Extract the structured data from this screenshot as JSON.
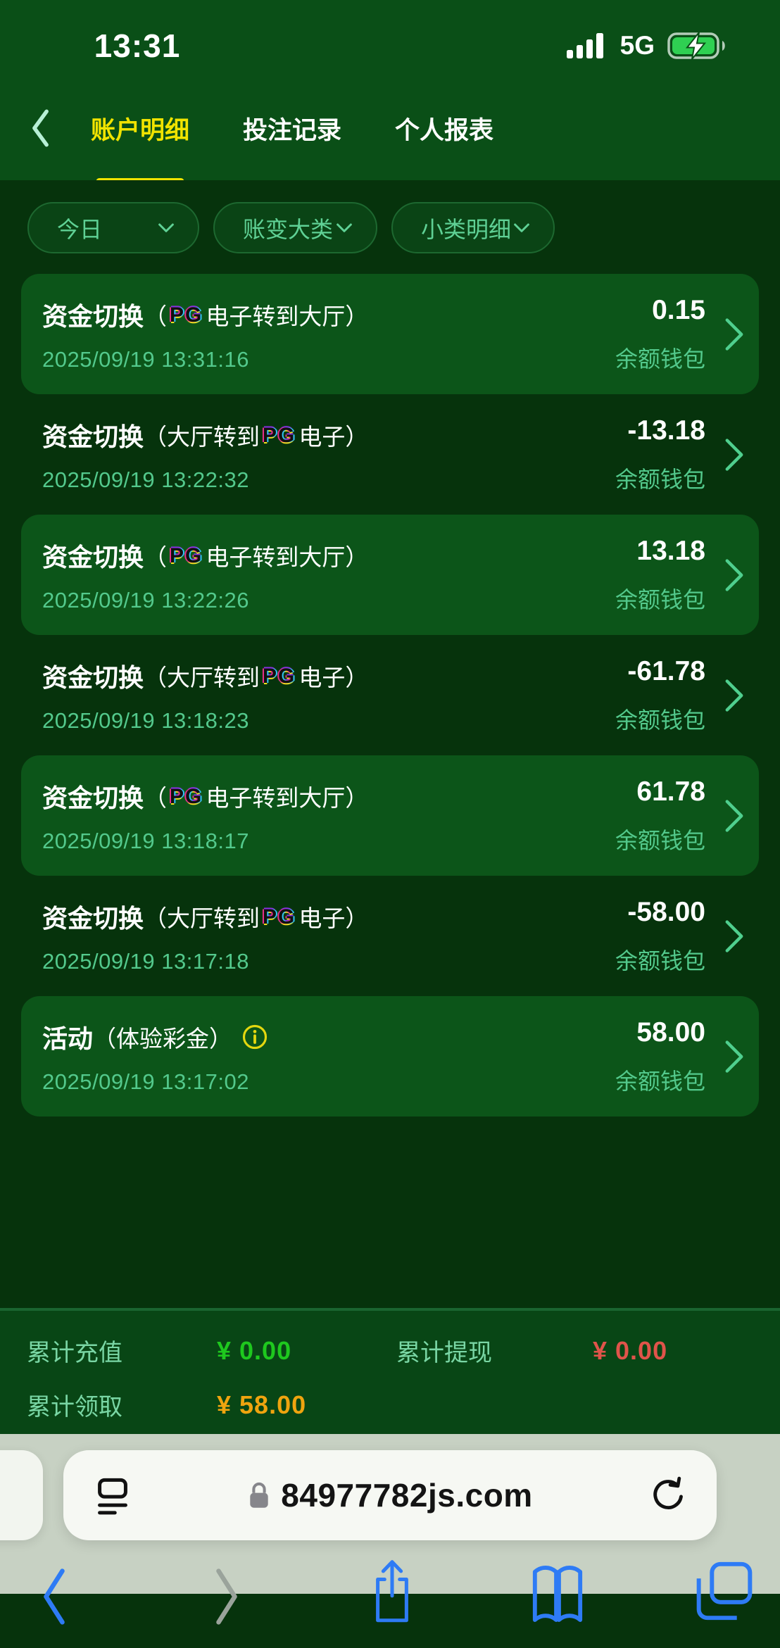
{
  "status_bar": {
    "time": "13:31",
    "network_label": "5G"
  },
  "nav": {
    "tabs": [
      {
        "id": "account-detail",
        "label": "账户明细",
        "active": true
      },
      {
        "id": "bet-records",
        "label": "投注记录",
        "active": false
      },
      {
        "id": "personal-report",
        "label": "个人报表",
        "active": false
      }
    ]
  },
  "filters": [
    {
      "id": "date-range",
      "label": "今日"
    },
    {
      "id": "change-category",
      "label": "账变大类"
    },
    {
      "id": "sub-category",
      "label": "小类明细"
    }
  ],
  "pg_logo_text": "PG",
  "transactions": [
    {
      "title": "资金切换",
      "detail": [
        {
          "text": "（"
        },
        {
          "icon": "pg"
        },
        {
          "text": "电子转到大厅）"
        }
      ],
      "amount": "0.15",
      "datetime": "2025/09/19 13:31:16",
      "wallet": "余额钱包",
      "highlighted": true
    },
    {
      "title": "资金切换",
      "detail": [
        {
          "text": "（大厅转到"
        },
        {
          "icon": "pg"
        },
        {
          "text": "电子）"
        }
      ],
      "amount": "-13.18",
      "datetime": "2025/09/19 13:22:32",
      "wallet": "余额钱包",
      "highlighted": false
    },
    {
      "title": "资金切换",
      "detail": [
        {
          "text": "（"
        },
        {
          "icon": "pg"
        },
        {
          "text": "电子转到大厅）"
        }
      ],
      "amount": "13.18",
      "datetime": "2025/09/19 13:22:26",
      "wallet": "余额钱包",
      "highlighted": true
    },
    {
      "title": "资金切换",
      "detail": [
        {
          "text": "（大厅转到"
        },
        {
          "icon": "pg"
        },
        {
          "text": "电子）"
        }
      ],
      "amount": "-61.78",
      "datetime": "2025/09/19 13:18:23",
      "wallet": "余额钱包",
      "highlighted": false
    },
    {
      "title": "资金切换",
      "detail": [
        {
          "text": "（"
        },
        {
          "icon": "pg"
        },
        {
          "text": "电子转到大厅）"
        }
      ],
      "amount": "61.78",
      "datetime": "2025/09/19 13:18:17",
      "wallet": "余额钱包",
      "highlighted": true
    },
    {
      "title": "资金切换",
      "detail": [
        {
          "text": "（大厅转到"
        },
        {
          "icon": "pg"
        },
        {
          "text": "电子）"
        }
      ],
      "amount": "-58.00",
      "datetime": "2025/09/19 13:17:18",
      "wallet": "余额钱包",
      "highlighted": false
    },
    {
      "title": "活动",
      "detail": [
        {
          "text": "（体验彩金）"
        },
        {
          "icon": "info"
        }
      ],
      "amount": "58.00",
      "datetime": "2025/09/19 13:17:02",
      "wallet": "余额钱包",
      "highlighted": true
    }
  ],
  "summary": {
    "rows": [
      [
        {
          "label": "累计充值",
          "value": "¥ 0.00",
          "color": "#1ec81e"
        },
        {
          "label": "累计提现",
          "value": "¥ 0.00",
          "color": "#e0544a"
        }
      ],
      [
        {
          "label": "累计领取",
          "value": "¥ 58.00",
          "color": "#efa40f"
        }
      ]
    ]
  },
  "browser": {
    "url": "84977782js.com",
    "toolbar": [
      {
        "id": "back",
        "icon": "chevron-back",
        "color": "#2e7bf5"
      },
      {
        "id": "forward",
        "icon": "chevron-forward",
        "color": "#9aa39b"
      },
      {
        "id": "share",
        "icon": "share",
        "color": "#2e7bf5"
      },
      {
        "id": "bookmarks",
        "icon": "book",
        "color": "#2e7bf5"
      },
      {
        "id": "tabs",
        "icon": "tabs",
        "color": "#2e7bf5"
      }
    ]
  },
  "colors": {
    "accent_yellow": "#f0e300",
    "mint_text": "#53c98c",
    "header_green": "#0a4f17",
    "background_green": "#06330c",
    "card_green": "#0c5519",
    "positive_green": "#1ec81e",
    "negative_red": "#e0544a",
    "claim_orange": "#efa40f",
    "ios_blue": "#2e7bf5"
  }
}
